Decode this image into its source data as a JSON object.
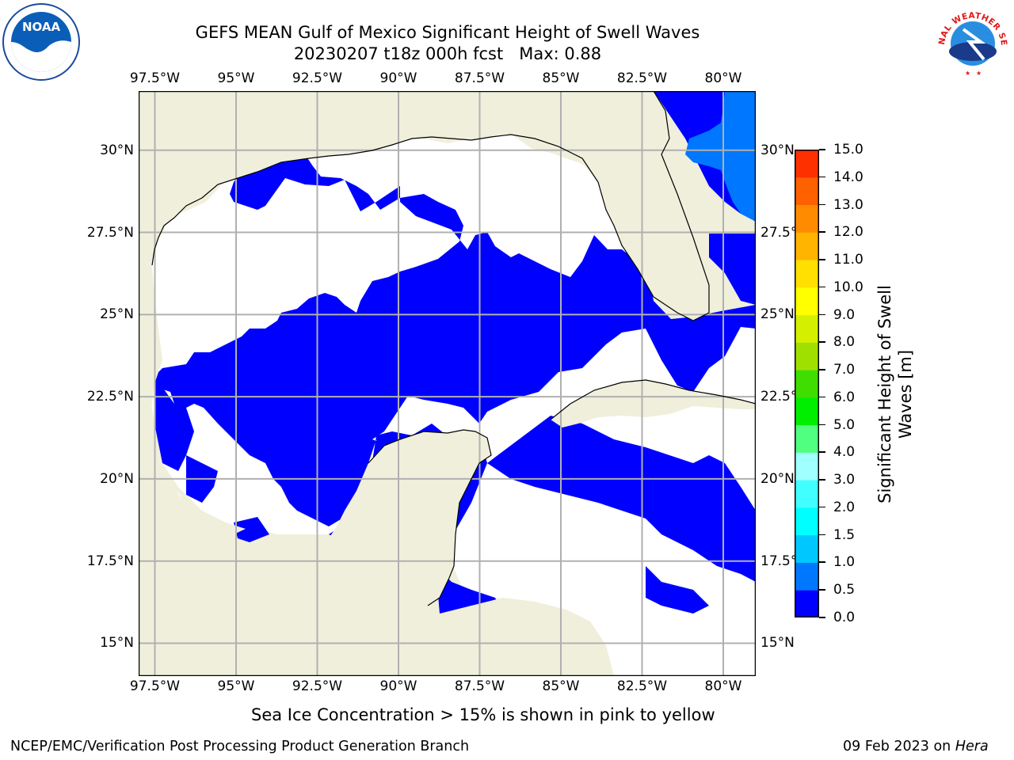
{
  "title": {
    "line1": "GEFS MEAN Gulf of Mexico Significant Height of Swell Waves",
    "line2": "20230207 t18z 000h fcst   Max: 0.88"
  },
  "logos": {
    "left": {
      "icon": "noaa-logo",
      "text": "NOAA"
    },
    "right": {
      "icon": "national-weather-service-logo",
      "text": "NATIONAL WEATHER SERVICE"
    }
  },
  "map": {
    "lon_range": [
      -98,
      -79
    ],
    "lat_range": [
      14,
      31.8
    ],
    "lon_ticks": [
      "97.5°W",
      "95°W",
      "92.5°W",
      "90°W",
      "87.5°W",
      "85°W",
      "82.5°W",
      "80°W"
    ],
    "lon_tick_values": [
      -97.5,
      -95,
      -92.5,
      -90,
      -87.5,
      -85,
      -82.5,
      -80
    ],
    "lat_ticks": [
      "15°N",
      "17.5°N",
      "20°N",
      "22.5°N",
      "25°N",
      "27.5°N",
      "30°N"
    ],
    "lat_tick_values": [
      15,
      17.5,
      20,
      22.5,
      25,
      27.5,
      30
    ],
    "right_lat_ticks": [
      "15°N",
      "17.5°N",
      "20°N",
      "22.5°N",
      "25°N",
      "27.5°N",
      "30°N"
    ],
    "colors": {
      "land": "#efefdc",
      "ocean_blue": "#0000ff",
      "ocean_lightblue": "#0077ff",
      "grid": "#b0b0b0",
      "coast": "#000000"
    }
  },
  "colorbar": {
    "label_line1": "Significant Height of Swell",
    "label_line2": "Waves [m]",
    "tick_labels": [
      "0.0",
      "0.5",
      "1.0",
      "1.5",
      "2.0",
      "3.0",
      "4.0",
      "5.0",
      "6.0",
      "7.0",
      "8.0",
      "9.0",
      "10.0",
      "11.0",
      "12.0",
      "13.0",
      "14.0",
      "15.0"
    ],
    "colors": [
      "#0000ff",
      "#0077ff",
      "#00c8ff",
      "#00ffff",
      "#40ffff",
      "#a0ffff",
      "#50ff80",
      "#00ee00",
      "#40dd00",
      "#a0e000",
      "#d4f000",
      "#ffff00",
      "#ffe000",
      "#ffb400",
      "#ff8c00",
      "#ff6000",
      "#ff3000",
      "#ff0000"
    ]
  },
  "subfooter": "Sea Ice Concentration > 15% is shown in pink to yellow",
  "footer": {
    "left": "NCEP/EMC/Verification Post Processing Product Generation Branch",
    "right_date": "09 Feb 2023 on ",
    "right_host": "Hera"
  }
}
